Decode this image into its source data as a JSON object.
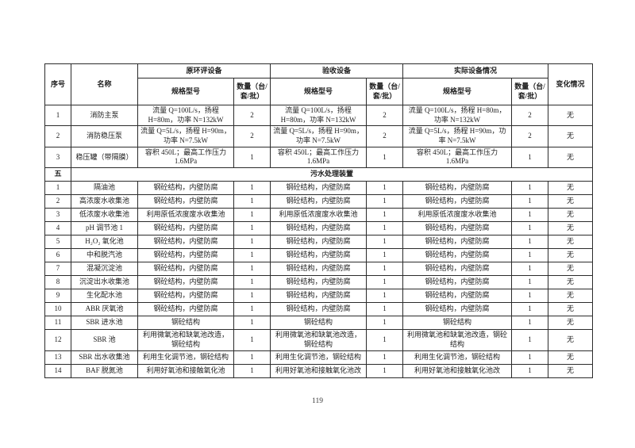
{
  "page_number": "119",
  "table": {
    "header": {
      "no": "序号",
      "name": "名称",
      "group_eia": "原环评设备",
      "group_acceptance": "验收设备",
      "group_actual": "实际设备情况",
      "spec": "规格型号",
      "qty": "数量（台/套/批）",
      "change": "变化情况"
    },
    "rows": [
      {
        "type": "data",
        "no": "1",
        "name": "消防主泵",
        "spec_eia": "流量 Q=100L/s，扬程 H=80m，功率 N=132kW",
        "qty_eia": "2",
        "spec_acceptance": "流量 Q=100L/s，扬程 H=80m，功率 N=132kW",
        "qty_acceptance": "2",
        "spec_actual": "流量 Q=100L/s，扬程 H=80m，功率 N=132kW",
        "qty_actual": "2",
        "change": "无"
      },
      {
        "type": "data",
        "no": "2",
        "name": "消防稳压泵",
        "spec_eia": "流量 Q=5L/s，扬程 H=90m，功率 N=7.5kW",
        "qty_eia": "2",
        "spec_acceptance": "流量 Q=5L/s，扬程 H=90m，功率 N=7.5kW",
        "qty_acceptance": "2",
        "spec_actual": "流量 Q=5L/s，扬程 H=90m，功率 N=7.5kW",
        "qty_actual": "2",
        "change": "无"
      },
      {
        "type": "data",
        "no": "3",
        "name": "稳压罐（带隔膜）",
        "spec_eia": "容积 450L；最高工作压力 1.6MPa",
        "qty_eia": "1",
        "spec_acceptance": "容积 450L；最高工作压力 1.6MPa",
        "qty_acceptance": "1",
        "spec_actual": "容积 450L；最高工作压力 1.6MPa",
        "qty_actual": "1",
        "change": "无"
      },
      {
        "type": "section",
        "no": "五",
        "title": "污水处理装置"
      },
      {
        "type": "data",
        "no": "1",
        "name": "隔油池",
        "spec_eia": "钢砼结构，内壁防腐",
        "qty_eia": "1",
        "spec_acceptance": "钢砼结构，内壁防腐",
        "qty_acceptance": "1",
        "spec_actual": "钢砼结构，内壁防腐",
        "qty_actual": "1",
        "change": "无"
      },
      {
        "type": "data",
        "no": "2",
        "name": "高浓废水收集池",
        "spec_eia": "钢砼结构，内壁防腐",
        "qty_eia": "1",
        "spec_acceptance": "钢砼结构，内壁防腐",
        "qty_acceptance": "1",
        "spec_actual": "钢砼结构，内壁防腐",
        "qty_actual": "1",
        "change": "无"
      },
      {
        "type": "data",
        "no": "3",
        "name": "低浓废水收集池",
        "spec_eia": "利用原低浓度废水收集池",
        "qty_eia": "1",
        "spec_acceptance": "利用原低浓度废水收集池",
        "qty_acceptance": "1",
        "spec_actual": "利用原低浓度废水收集池",
        "qty_actual": "1",
        "change": "无"
      },
      {
        "type": "data",
        "no": "4",
        "name": "pH 调节池 1",
        "spec_eia": "钢砼结构，内壁防腐",
        "qty_eia": "1",
        "spec_acceptance": "钢砼结构，内壁防腐",
        "qty_acceptance": "1",
        "spec_actual": "钢砼结构，内壁防腐",
        "qty_actual": "1",
        "change": "无"
      },
      {
        "type": "data",
        "no": "5",
        "name": "H₂O₂ 氧化池",
        "spec_eia": "钢砼结构，内壁防腐",
        "qty_eia": "1",
        "spec_acceptance": "钢砼结构，内壁防腐",
        "qty_acceptance": "1",
        "spec_actual": "钢砼结构，内壁防腐",
        "qty_actual": "1",
        "change": "无"
      },
      {
        "type": "data",
        "no": "6",
        "name": "中和脱汽池",
        "spec_eia": "钢砼结构，内壁防腐",
        "qty_eia": "1",
        "spec_acceptance": "钢砼结构，内壁防腐",
        "qty_acceptance": "1",
        "spec_actual": "钢砼结构，内壁防腐",
        "qty_actual": "1",
        "change": "无"
      },
      {
        "type": "data",
        "no": "7",
        "name": "混凝沉淀池",
        "spec_eia": "钢砼结构，内壁防腐",
        "qty_eia": "1",
        "spec_acceptance": "钢砼结构，内壁防腐",
        "qty_acceptance": "1",
        "spec_actual": "钢砼结构，内壁防腐",
        "qty_actual": "1",
        "change": "无"
      },
      {
        "type": "data",
        "no": "8",
        "name": "沉淀出水收集池",
        "spec_eia": "钢砼结构，内壁防腐",
        "qty_eia": "1",
        "spec_acceptance": "钢砼结构，内壁防腐",
        "qty_acceptance": "1",
        "spec_actual": "钢砼结构，内壁防腐",
        "qty_actual": "1",
        "change": "无"
      },
      {
        "type": "data",
        "no": "9",
        "name": "生化配水池",
        "spec_eia": "钢砼结构，内壁防腐",
        "qty_eia": "1",
        "spec_acceptance": "钢砼结构，内壁防腐",
        "qty_acceptance": "1",
        "spec_actual": "钢砼结构，内壁防腐",
        "qty_actual": "1",
        "change": "无"
      },
      {
        "type": "data",
        "no": "10",
        "name": "ABR 厌氧池",
        "spec_eia": "钢砼结构，内壁防腐",
        "qty_eia": "1",
        "spec_acceptance": "钢砼结构，内壁防腐",
        "qty_acceptance": "1",
        "spec_actual": "钢砼结构，内壁防腐",
        "qty_actual": "1",
        "change": "无"
      },
      {
        "type": "data",
        "no": "11",
        "name": "SBR 进水池",
        "spec_eia": "钢砼结构",
        "qty_eia": "1",
        "spec_acceptance": "钢砼结构",
        "qty_acceptance": "1",
        "spec_actual": "钢砼结构",
        "qty_actual": "1",
        "change": "无"
      },
      {
        "type": "data",
        "no": "12",
        "name": "SBR 池",
        "spec_eia": "利用微氧池和缺氧池改造，钢砼结构",
        "qty_eia": "1",
        "spec_acceptance": "利用微氧池和缺氧池改造，钢砼结构",
        "qty_acceptance": "1",
        "spec_actual": "利用微氧池和缺氧池改造，钢砼结构",
        "qty_actual": "1",
        "change": "无"
      },
      {
        "type": "data",
        "no": "13",
        "name": "SBR 出水收集池",
        "spec_eia": "利用生化调节池，钢砼结构",
        "qty_eia": "1",
        "spec_acceptance": "利用生化调节池，钢砼结构",
        "qty_acceptance": "1",
        "spec_actual": "利用生化调节池，钢砼结构",
        "qty_actual": "1",
        "change": "无"
      },
      {
        "type": "data",
        "no": "14",
        "name": "BAF 脱氮池",
        "spec_eia": "利用好氧池和接触氧化池",
        "qty_eia": "1",
        "spec_acceptance": "利用好氧池和接触氧化池改",
        "qty_acceptance": "1",
        "spec_actual": "利用好氧池和接触氧化池改",
        "qty_actual": "1",
        "change": "无"
      }
    ]
  }
}
